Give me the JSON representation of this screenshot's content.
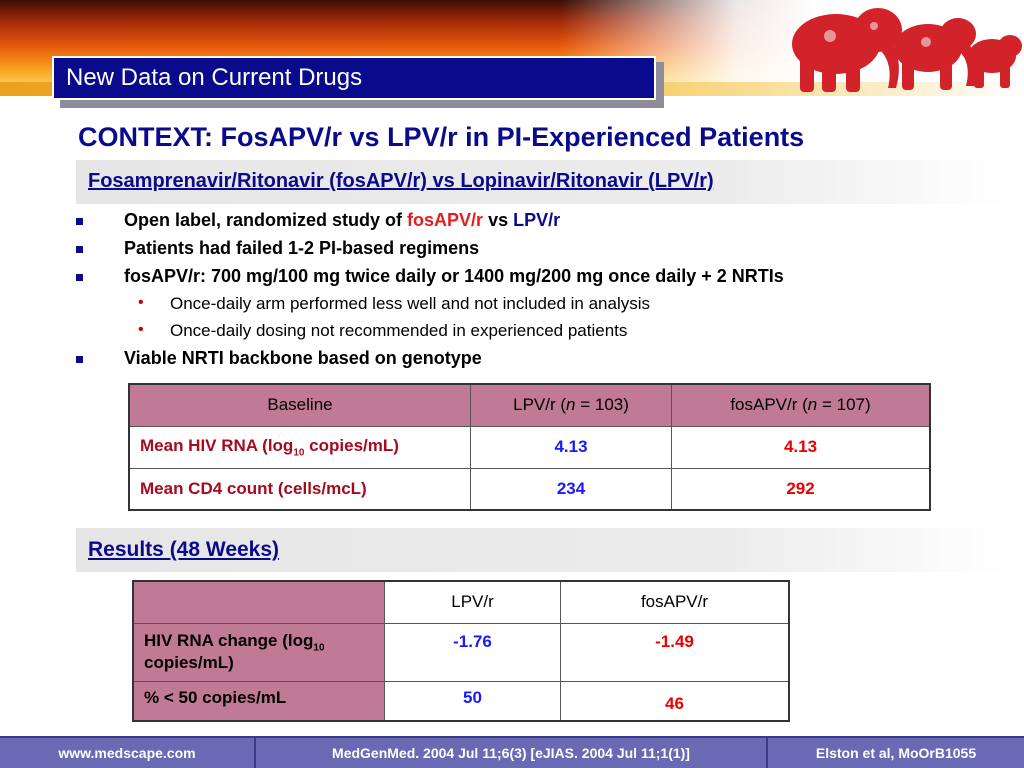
{
  "header": {
    "title": "New Data on Current Drugs",
    "logo_icon": "elephant-logo-icon"
  },
  "context_title": "CONTEXT: FosAPV/r vs LPV/r in PI-Experienced Patients",
  "subheading": "Fosamprenavir/Ritonavir (fosAPV/r) vs Lopinavir/Ritonavir (LPV/r)",
  "bullets": {
    "b1_prefix": "Open label, randomized study of ",
    "b1_fos": "fosAPV/r",
    "b1_vs": " vs ",
    "b1_lpv": "LPV/r",
    "b2": "Patients had failed 1-2 PI-based regimens",
    "b3": "fosAPV/r: 700 mg/100 mg twice daily or 1400 mg/200 mg once daily + 2 NRTIs",
    "b3_sub1": "Once-daily arm performed less well and not included in analysis",
    "b3_sub2": "Once-daily dosing not recommended in experienced patients",
    "b4": "Viable NRTI backbone based on genotype"
  },
  "baseline_table": {
    "col1": "Baseline",
    "col2_pre": "LPV/r (",
    "col2_n": "n",
    "col2_post": " = 103)",
    "col3_pre": "fosAPV/r (",
    "col3_n": "n",
    "col3_post": " = 107)",
    "row1_label_pre": "Mean HIV RNA (log",
    "row1_label_sub": "10",
    "row1_label_post": " copies/mL)",
    "row1_lpv": "4.13",
    "row1_fos": "4.13",
    "row2_label": "Mean CD4 count (cells/mcL)",
    "row2_lpv": "234",
    "row2_fos": "292"
  },
  "results_heading": "Results (48 Weeks)",
  "results_table": {
    "col2": "LPV/r",
    "col3": "fosAPV/r",
    "row1_label_pre": "HIV RNA change (log",
    "row1_label_sub": "10",
    "row1_label_post": " copies/mL)",
    "row1_lpv": "-1.76",
    "row1_fos": "-1.49",
    "row2_label": "% < 50 copies/mL",
    "row2_lpv": "50",
    "row2_fos": "46"
  },
  "footer": {
    "site": "www.medscape.com",
    "citation": "MedGenMed. 2004 Jul 11;6(3) [eJIAS. 2004 Jul 11;1(1)]",
    "author": "Elston et al,  MoOrB1055"
  },
  "colors": {
    "navy": "#0a0a8c",
    "table_header_pink": "#c07a95",
    "value_blue": "#1a1aff",
    "value_red": "#ee0000",
    "label_maroon": "#a50a1e",
    "footer_bg": "#6a6ab4"
  }
}
